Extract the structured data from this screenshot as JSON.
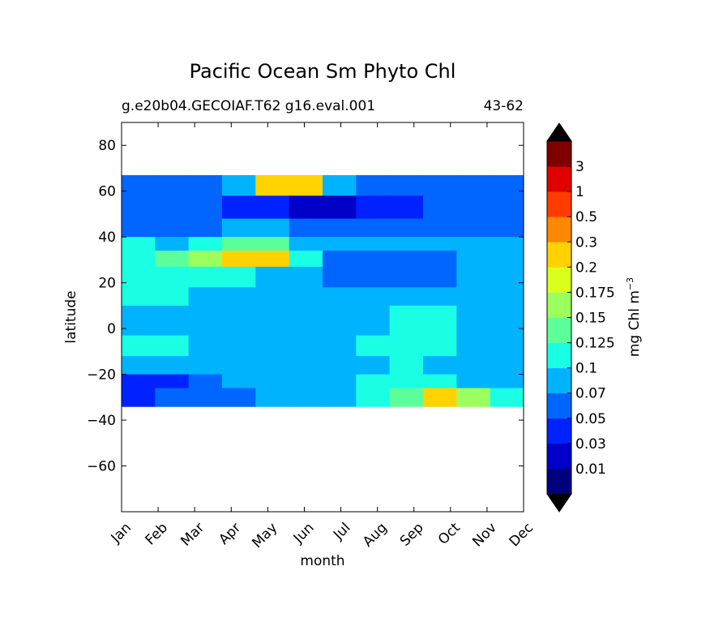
{
  "chart_data": {
    "type": "heatmap",
    "title": "Pacific Ocean Sm Phyto Chl",
    "subtitle_left": "g.e20b04.GECOIAF.T62 g16.eval.001",
    "subtitle_right": "43-62",
    "xlabel": "month",
    "ylabel": "latitude",
    "x_tick_labels": [
      "Jan",
      "Feb",
      "Mar",
      "Apr",
      "May",
      "Jun",
      "Jul",
      "Aug",
      "Sep",
      "Oct",
      "Nov",
      "Dec"
    ],
    "y_ticks": [
      80,
      60,
      40,
      20,
      0,
      -20,
      -40,
      -60
    ],
    "y_tick_labels": [
      "80",
      "60",
      "40",
      "20",
      "0",
      "−20",
      "−40",
      "−60"
    ],
    "ylim": [
      -80,
      90
    ],
    "data_lat_range": [
      -34,
      67
    ],
    "colorbar": {
      "label_text": "mg Chl m",
      "label_exponent": "−3",
      "levels": [
        "0.01",
        "0.03",
        "0.05",
        "0.07",
        "0.1",
        "0.125",
        "0.15",
        "0.175",
        "0.2",
        "0.3",
        "0.5",
        "1",
        "3"
      ],
      "colors": [
        "#00007f",
        "#0000c8",
        "#0022ff",
        "#0066ff",
        "#00b3ff",
        "#1affe4",
        "#5dff9b",
        "#9bff5d",
        "#dbff1c",
        "#ffd200",
        "#ff8800",
        "#ff3c00",
        "#e00000",
        "#7f0000"
      ],
      "extend": "both"
    },
    "field_colors": [
      "#00007f",
      "#0000c8",
      "#0022ff",
      "#0066ff",
      "#00b3ff",
      "#1affe4",
      "#5dff9b",
      "#9bff5d",
      "#dbff1c",
      "#ffd200",
      "#ff8800",
      "#ff3c00",
      "#e00000"
    ],
    "chl_bands": [
      {
        "lat_top": 67,
        "lat_bottom": 58,
        "values": [
          0.05,
          0.05,
          0.06,
          0.08,
          0.25,
          0.2,
          0.08,
          0.05,
          0.05,
          0.05,
          0.05,
          0.05
        ]
      },
      {
        "lat_top": 58,
        "lat_bottom": 48,
        "values": [
          0.05,
          0.05,
          0.05,
          0.04,
          0.03,
          0.02,
          0.02,
          0.03,
          0.04,
          0.05,
          0.05,
          0.05
        ]
      },
      {
        "lat_top": 48,
        "lat_bottom": 40,
        "values": [
          0.05,
          0.05,
          0.06,
          0.07,
          0.07,
          0.05,
          0.05,
          0.05,
          0.05,
          0.05,
          0.05,
          0.05
        ]
      },
      {
        "lat_top": 40,
        "lat_bottom": 34,
        "values": [
          0.11,
          0.09,
          0.11,
          0.13,
          0.14,
          0.09,
          0.08,
          0.08,
          0.08,
          0.07,
          0.08,
          0.09
        ]
      },
      {
        "lat_top": 34,
        "lat_bottom": 27,
        "values": [
          0.12,
          0.13,
          0.16,
          0.22,
          0.2,
          0.11,
          0.06,
          0.05,
          0.05,
          0.06,
          0.08,
          0.09
        ]
      },
      {
        "lat_top": 27,
        "lat_bottom": 18,
        "values": [
          0.11,
          0.11,
          0.11,
          0.1,
          0.09,
          0.08,
          0.06,
          0.05,
          0.05,
          0.06,
          0.08,
          0.09
        ]
      },
      {
        "lat_top": 18,
        "lat_bottom": 10,
        "values": [
          0.1,
          0.1,
          0.09,
          0.09,
          0.09,
          0.09,
          0.09,
          0.09,
          0.09,
          0.09,
          0.09,
          0.09
        ]
      },
      {
        "lat_top": 10,
        "lat_bottom": -3,
        "values": [
          0.09,
          0.09,
          0.09,
          0.09,
          0.09,
          0.09,
          0.09,
          0.09,
          0.11,
          0.11,
          0.09,
          0.09
        ]
      },
      {
        "lat_top": -3,
        "lat_bottom": -12,
        "values": [
          0.11,
          0.11,
          0.09,
          0.09,
          0.09,
          0.09,
          0.09,
          0.11,
          0.12,
          0.11,
          0.09,
          0.09
        ]
      },
      {
        "lat_top": -12,
        "lat_bottom": -20,
        "values": [
          0.07,
          0.07,
          0.08,
          0.08,
          0.08,
          0.09,
          0.09,
          0.09,
          0.11,
          0.09,
          0.07,
          0.07
        ]
      },
      {
        "lat_top": -20,
        "lat_bottom": -26,
        "values": [
          0.04,
          0.04,
          0.06,
          0.07,
          0.07,
          0.08,
          0.09,
          0.1,
          0.11,
          0.11,
          0.08,
          0.07
        ]
      },
      {
        "lat_top": -26,
        "lat_bottom": -34,
        "values": [
          0.04,
          0.05,
          0.06,
          0.06,
          0.08,
          0.08,
          0.08,
          0.1,
          0.14,
          0.2,
          0.16,
          0.1
        ]
      }
    ]
  }
}
